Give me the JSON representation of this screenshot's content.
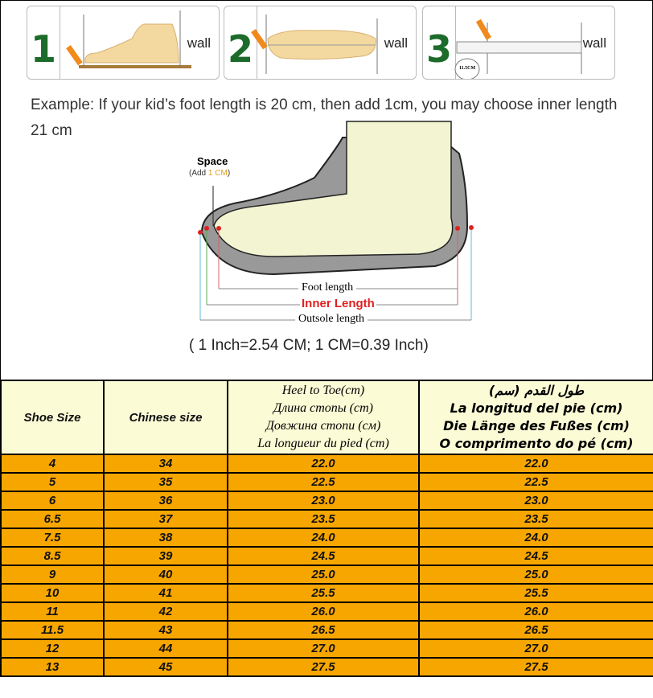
{
  "steps": [
    {
      "number": "1",
      "wall_label": "wall"
    },
    {
      "number": "2",
      "wall_label": "wall"
    },
    {
      "number": "3",
      "wall_label": "wall",
      "ruler_reading": "11.5CM"
    }
  ],
  "example_text": "Example: If your kid’s foot length is 20 cm, then add 1cm, you may choose inner length 21 cm",
  "diagram": {
    "space_label": "Space",
    "space_note_prefix": "(Add ",
    "space_note_value": "1 CM",
    "space_note_suffix": ")",
    "foot_length": "Foot length",
    "inner_length": "Inner Length",
    "outsole_length": "Outsole length"
  },
  "conversion_note": "( 1 Inch=2.54 CM; 1 CM=0.39 Inch)",
  "colors": {
    "header_bg": "#fbfbd6",
    "row_bg": "#f7a600",
    "step_number": "#1d6b2a",
    "inner_length": "#e02020"
  },
  "table": {
    "headers": {
      "shoe_size": "Shoe Size",
      "chinese_size": "Chinese size",
      "heel_to_toe": [
        "Heel to Toe(cm)",
        "Длина стопы (cm)",
        "Довжина стопи (см)",
        "La longueur du pied (cm)"
      ],
      "foot_length_multi": [
        "(طول القدم (سم",
        "La longitud del pie (cm)",
        "Die Länge des Fußes (cm)",
        "O comprimento do pé (cm)"
      ]
    },
    "rows": [
      [
        "4",
        "34",
        "22.0",
        "22.0"
      ],
      [
        "5",
        "35",
        "22.5",
        "22.5"
      ],
      [
        "6",
        "36",
        "23.0",
        "23.0"
      ],
      [
        "6.5",
        "37",
        "23.5",
        "23.5"
      ],
      [
        "7.5",
        "38",
        "24.0",
        "24.0"
      ],
      [
        "8.5",
        "39",
        "24.5",
        "24.5"
      ],
      [
        "9",
        "40",
        "25.0",
        "25.0"
      ],
      [
        "10",
        "41",
        "25.5",
        "25.5"
      ],
      [
        "11",
        "42",
        "26.0",
        "26.0"
      ],
      [
        "11.5",
        "43",
        "26.5",
        "26.5"
      ],
      [
        "12",
        "44",
        "27.0",
        "27.0"
      ],
      [
        "13",
        "45",
        "27.5",
        "27.5"
      ]
    ]
  }
}
